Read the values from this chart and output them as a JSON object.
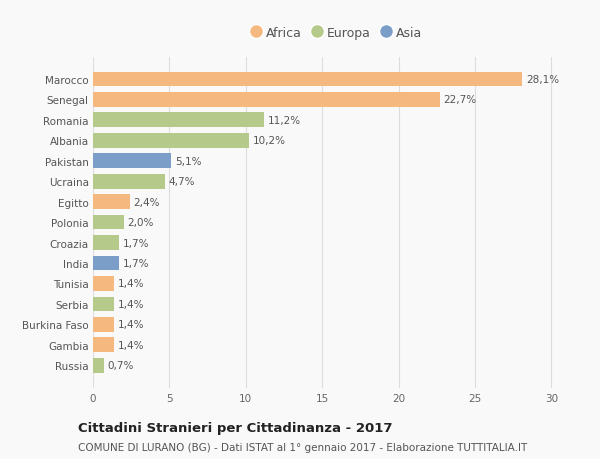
{
  "categories": [
    "Marocco",
    "Senegal",
    "Romania",
    "Albania",
    "Pakistan",
    "Ucraina",
    "Egitto",
    "Polonia",
    "Croazia",
    "India",
    "Tunisia",
    "Serbia",
    "Burkina Faso",
    "Gambia",
    "Russia"
  ],
  "values": [
    28.1,
    22.7,
    11.2,
    10.2,
    5.1,
    4.7,
    2.4,
    2.0,
    1.7,
    1.7,
    1.4,
    1.4,
    1.4,
    1.4,
    0.7
  ],
  "continents": [
    "Africa",
    "Africa",
    "Europa",
    "Europa",
    "Asia",
    "Europa",
    "Africa",
    "Europa",
    "Europa",
    "Asia",
    "Africa",
    "Europa",
    "Africa",
    "Africa",
    "Europa"
  ],
  "colors": {
    "Africa": "#F5B97F",
    "Europa": "#B5C98A",
    "Asia": "#7B9EC8"
  },
  "legend_labels": [
    "Africa",
    "Europa",
    "Asia"
  ],
  "legend_colors": [
    "#F5B97F",
    "#B5C98A",
    "#7B9EC8"
  ],
  "xlim": [
    0,
    32
  ],
  "xticks": [
    0,
    5,
    10,
    15,
    20,
    25,
    30
  ],
  "title": "Cittadini Stranieri per Cittadinanza - 2017",
  "subtitle": "COMUNE DI LURANO (BG) - Dati ISTAT al 1° gennaio 2017 - Elaborazione TUTTITALIA.IT",
  "background_color": "#f9f9f9",
  "bar_height": 0.72,
  "label_fontsize": 7.5,
  "title_fontsize": 9.5,
  "subtitle_fontsize": 7.5,
  "tick_fontsize": 7.5,
  "legend_fontsize": 9
}
